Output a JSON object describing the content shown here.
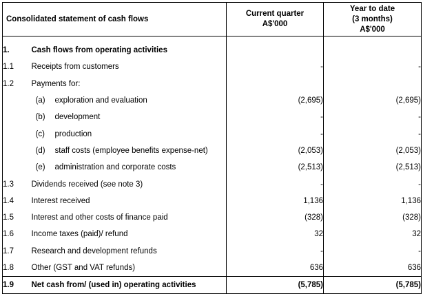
{
  "header": {
    "title": "Consolidated statement of cash flows",
    "current_quarter_line1": "Current quarter",
    "current_quarter_line2": "A$'000",
    "ytd_line1": "Year to date",
    "ytd_line2": "(3 months)",
    "ytd_line3": "A$'000"
  },
  "rows": [
    {
      "num": "1.",
      "desc": "Cash flows from operating activities",
      "q": "",
      "ytd": "",
      "bold": true
    },
    {
      "num": "1.1",
      "desc": "Receipts from customers",
      "q": "-",
      "ytd": "-"
    },
    {
      "num": "1.2",
      "desc": "Payments for:",
      "q": "",
      "ytd": ""
    },
    {
      "num": "",
      "tag": "(a)",
      "desc": "exploration and evaluation",
      "q": "(2,695)",
      "ytd": "(2,695)"
    },
    {
      "num": "",
      "tag": "(b)",
      "desc": "development",
      "q": "-",
      "ytd": "-"
    },
    {
      "num": "",
      "tag": "(c)",
      "desc": "production",
      "q": "-",
      "ytd": "-"
    },
    {
      "num": "",
      "tag": "(d)",
      "desc": "staff costs (employee benefits expense-net)",
      "q": "(2,053)",
      "ytd": "(2,053)"
    },
    {
      "num": "",
      "tag": "(e)",
      "desc": "administration and corporate costs",
      "q": "(2,513)",
      "ytd": "(2,513)"
    },
    {
      "num": "1.3",
      "desc": "Dividends received (see note 3)",
      "q": "-",
      "ytd": "-"
    },
    {
      "num": "1.4",
      "desc": "Interest received",
      "q": "1,136",
      "ytd": "1,136"
    },
    {
      "num": "1.5",
      "desc": "Interest and other costs of finance paid",
      "q": "(328)",
      "ytd": "(328)"
    },
    {
      "num": "1.6",
      "desc": "Income taxes (paid)/ refund",
      "q": "32",
      "ytd": "32"
    },
    {
      "num": "1.7",
      "desc": "Research and development refunds",
      "q": "-",
      "ytd": "-"
    },
    {
      "num": "1.8",
      "desc": "Other (GST and VAT refunds)",
      "q": "636",
      "ytd": "636"
    },
    {
      "num": "1.9",
      "desc": "Net cash from/ (used in) operating activities",
      "q": "(5,785)",
      "ytd": "(5,785)",
      "bold": true
    }
  ]
}
